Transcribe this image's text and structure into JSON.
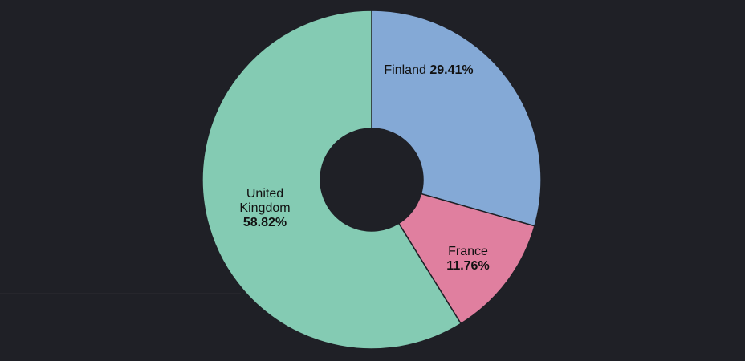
{
  "chart_data": {
    "type": "donut",
    "categories": [
      "Finland",
      "France",
      "United Kingdom"
    ],
    "values": [
      29.41,
      11.76,
      58.82
    ],
    "value_labels": [
      "29.41%",
      "11.76%",
      "58.82%"
    ],
    "colors": [
      "#84a9d6",
      "#e07f9f",
      "#84cbb3"
    ]
  }
}
